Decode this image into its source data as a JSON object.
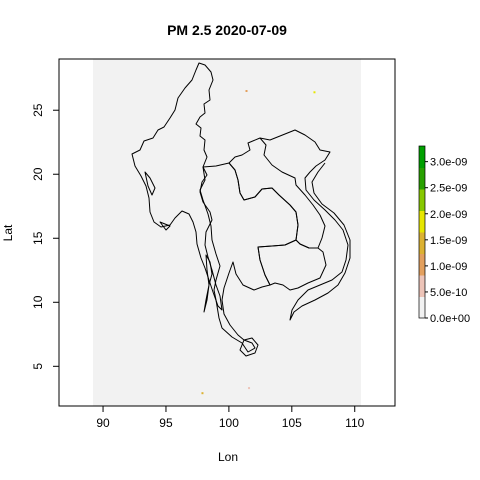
{
  "chart_data": {
    "type": "heatmap",
    "title": "PM 2.5 2020-07-09",
    "xlabel": "Lon",
    "ylabel": "Lat",
    "xlim": [
      86.5,
      113.2
    ],
    "ylim": [
      1.9,
      29.0
    ],
    "x_ticks": [
      90,
      95,
      100,
      105,
      110
    ],
    "y_ticks": [
      5,
      10,
      15,
      20,
      25
    ],
    "x_tick_labels": [
      "90",
      "95",
      "100",
      "105",
      "110"
    ],
    "y_tick_labels": [
      "5",
      "10",
      "15",
      "20",
      "25"
    ],
    "raster_extent": {
      "lon": [
        89.2,
        110.5
      ],
      "lat": [
        1.9,
        29.0
      ]
    },
    "raster_fill_color": "#f2f2f2",
    "legend": {
      "position": "right",
      "range": [
        0,
        3.3e-09
      ],
      "tick_values": [
        0,
        5e-10,
        1e-09,
        1.5e-09,
        2e-09,
        2.5e-09,
        3e-09
      ],
      "tick_labels": [
        "0.0e+00",
        "5.0e-10",
        "1.0e-09",
        "1.5e-09",
        "2.0e-09",
        "2.5e-09",
        "3.0e-09"
      ],
      "colors": [
        "#f2f2f2",
        "#edc4b8",
        "#e3a05e",
        "#dcb232",
        "#e6e600",
        "#87c800",
        "#28a000",
        "#00a000"
      ]
    },
    "boundary_color": "#000000",
    "hotspots": [
      {
        "lon": 101.4,
        "lat": 26.5,
        "value": 1.2e-09
      },
      {
        "lon": 106.8,
        "lat": 26.4,
        "value": 1.8e-09
      },
      {
        "lon": 97.9,
        "lat": 2.9,
        "value": 1.5e-09
      },
      {
        "lon": 101.6,
        "lat": 3.3,
        "value": 6e-10
      }
    ]
  }
}
